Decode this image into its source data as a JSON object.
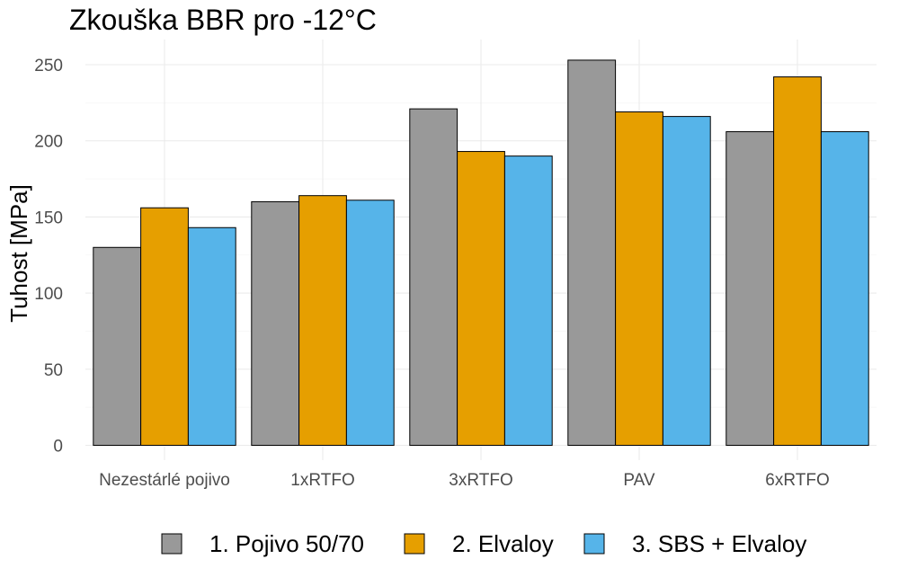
{
  "chart_data": {
    "type": "bar",
    "title": "Zkouška BBR pro -12°C",
    "xlabel": "",
    "ylabel": "Tuhost [MPa]",
    "ylim": [
      0,
      265
    ],
    "yticks": [
      0,
      50,
      100,
      150,
      200,
      250
    ],
    "grid": true,
    "legend_position": "bottom",
    "categories": [
      "Nezestárlé pojivo",
      "1xRTFO",
      "3xRTFO",
      "PAV",
      "6xRTFO"
    ],
    "series": [
      {
        "name": "1. Pojivo 50/70",
        "color": "#999999",
        "values": [
          130,
          160,
          221,
          253,
          206
        ]
      },
      {
        "name": "2. Elvaloy",
        "color": "#E69F00",
        "values": [
          156,
          164,
          193,
          219,
          242
        ]
      },
      {
        "name": "3. SBS +  Elvaloy",
        "color": "#56B4E9",
        "values": [
          143,
          161,
          190,
          216,
          206
        ]
      }
    ]
  }
}
